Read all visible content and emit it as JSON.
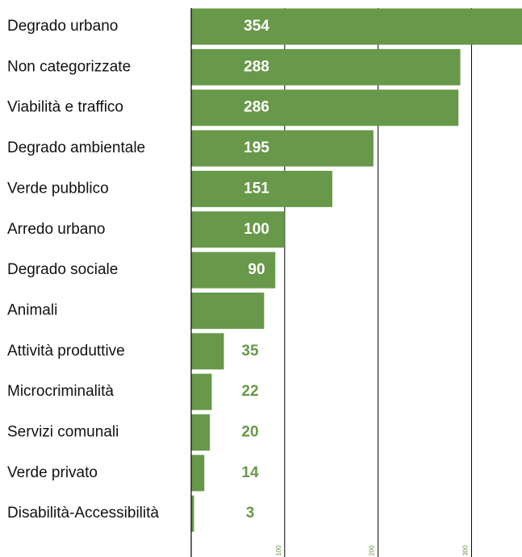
{
  "chart_data": {
    "type": "bar",
    "orientation": "horizontal",
    "categories": [
      "Degrado urbano",
      "Non categorizzate",
      "Viabilità e traffico",
      "Degrado ambientale",
      "Verde pubblico",
      "Arredo urbano",
      "Degrado sociale",
      "Animali",
      "Attività produttive",
      "Microcriminalità",
      "Servizi comunali",
      "Verde privato",
      "Disabilità-Accessibilità"
    ],
    "values": [
      354,
      288,
      286,
      195,
      151,
      100,
      90,
      78,
      35,
      22,
      20,
      14,
      3
    ],
    "color": "#689849",
    "xlim": [
      0,
      354
    ],
    "xticks": [
      100,
      200,
      300
    ],
    "grid": true
  }
}
